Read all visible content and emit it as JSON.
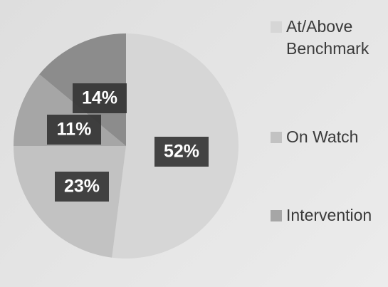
{
  "chart_data": {
    "type": "pie",
    "categories": [
      "At/Above Benchmark",
      "On Watch",
      "Intervention",
      null
    ],
    "values": [
      52,
      23,
      11,
      14
    ],
    "value_labels": [
      "52%",
      "23%",
      "11%",
      "14%"
    ],
    "colors": [
      "#d6d6d6",
      "#c2c2c2",
      "#a6a6a6",
      "#8c8c8c"
    ],
    "legend": "right"
  }
}
